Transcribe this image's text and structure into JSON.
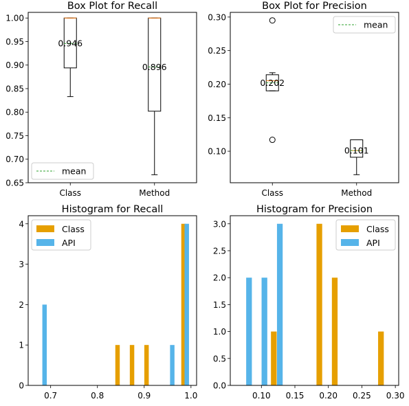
{
  "chart_data": [
    {
      "type": "box",
      "title": "Box Plot for Recall",
      "xlabel": "",
      "ylabel": "",
      "categories": [
        "Class",
        "Method"
      ],
      "boxes": [
        {
          "name": "Class",
          "whisker_low": 0.833,
          "q1": 0.894,
          "median": 1.0,
          "q3": 1.0,
          "whisker_high": 1.0,
          "mean": 0.946,
          "mean_label": "0.946",
          "outliers": []
        },
        {
          "name": "Method",
          "whisker_low": 0.667,
          "q1": 0.802,
          "median": 1.0,
          "q3": 1.0,
          "whisker_high": 1.0,
          "mean": 0.896,
          "mean_label": "0.896",
          "outliers": []
        }
      ],
      "ylim": [
        0.65,
        1.012
      ],
      "yticks": [
        "0.65",
        "0.70",
        "0.75",
        "0.80",
        "0.85",
        "0.90",
        "0.95",
        "1.00"
      ],
      "legend": {
        "entries": [
          "mean"
        ],
        "position": "lower-left"
      },
      "grid": false
    },
    {
      "type": "box",
      "title": "Box Plot for Precision",
      "xlabel": "",
      "ylabel": "",
      "categories": [
        "Class",
        "Method"
      ],
      "boxes": [
        {
          "name": "Class",
          "whisker_low": 0.19,
          "q1": 0.19,
          "median": 0.205,
          "q3": 0.214,
          "whisker_high": 0.217,
          "mean": 0.202,
          "mean_label": "0.202",
          "outliers": [
            0.295,
            0.117
          ]
        },
        {
          "name": "Method",
          "whisker_low": 0.065,
          "q1": 0.091,
          "median": 0.101,
          "q3": 0.117,
          "whisker_high": 0.117,
          "mean": 0.101,
          "mean_label": "0.101",
          "outliers": []
        }
      ],
      "ylim": [
        0.053,
        0.307
      ],
      "yticks": [
        "0.10",
        "0.15",
        "0.20",
        "0.25",
        "0.30"
      ],
      "legend": {
        "entries": [
          "mean"
        ],
        "position": "upper-right"
      },
      "grid": false
    },
    {
      "type": "bar",
      "title": "Histogram for Recall",
      "xlabel": "",
      "ylabel": "",
      "series": [
        {
          "name": "Class",
          "color": "#E69F00",
          "bars": [
            {
              "x": 0.843,
              "value": 1
            },
            {
              "x": 0.874,
              "value": 1
            },
            {
              "x": 0.905,
              "value": 1
            },
            {
              "x": 0.984,
              "value": 4
            }
          ]
        },
        {
          "name": "API",
          "color": "#56B4E9",
          "bars": [
            {
              "x": 0.687,
              "value": 2
            },
            {
              "x": 0.96,
              "value": 1
            },
            {
              "x": 0.991,
              "value": 4
            }
          ]
        }
      ],
      "bar_width": 0.0095,
      "xlim": [
        0.652,
        1.012
      ],
      "ylim": [
        0,
        4.2
      ],
      "xticks": [
        "0.7",
        "0.8",
        "0.9",
        "1.0"
      ],
      "yticks": [
        "0",
        "1",
        "2",
        "3",
        "4"
      ],
      "legend": {
        "entries": [
          "Class",
          "API"
        ],
        "position": "upper-left"
      },
      "grid": false
    },
    {
      "type": "bar",
      "title": "Histogram for Precision",
      "xlabel": "",
      "ylabel": "",
      "series": [
        {
          "name": "Class",
          "color": "#E69F00",
          "bars": [
            {
              "x": 0.1185,
              "value": 1
            },
            {
              "x": 0.1865,
              "value": 3
            },
            {
              "x": 0.2095,
              "value": 2
            },
            {
              "x": 0.2785,
              "value": 1
            }
          ]
        },
        {
          "name": "API",
          "color": "#56B4E9",
          "bars": [
            {
              "x": 0.0815,
              "value": 2
            },
            {
              "x": 0.1045,
              "value": 2
            },
            {
              "x": 0.1275,
              "value": 3
            }
          ]
        }
      ],
      "bar_width": 0.0085,
      "xlim": [
        0.0535,
        0.305
      ],
      "ylim": [
        0,
        3.15
      ],
      "xticks": [
        "0.10",
        "0.15",
        "0.20",
        "0.25",
        "0.30"
      ],
      "yticks": [
        "0.0",
        "0.5",
        "1.0",
        "1.5",
        "2.0",
        "2.5",
        "3.0"
      ],
      "legend": {
        "entries": [
          "Class",
          "API"
        ],
        "position": "upper-right"
      },
      "grid": false
    }
  ]
}
